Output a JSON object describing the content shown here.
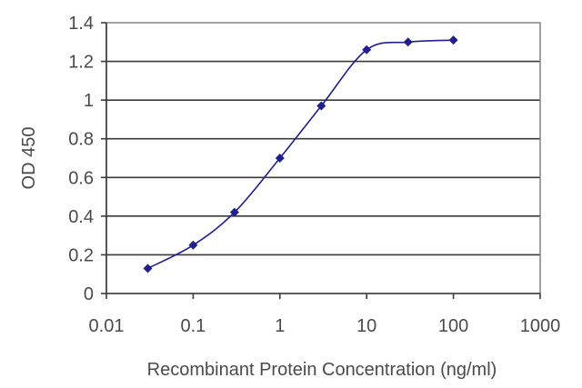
{
  "chart_data": {
    "type": "scatter",
    "xscale": "log",
    "ylabel": "OD 450",
    "xlabel": "Recombinant Protein Concentration (ng/ml)",
    "xlim": [
      0.01,
      1000
    ],
    "ylim": [
      0,
      1.4
    ],
    "xticks": [
      "0.01",
      "0.1",
      "1",
      "10",
      "100",
      "1000"
    ],
    "yticks": [
      "0",
      "0.2",
      "0.4",
      "0.6",
      "0.8",
      "1",
      "1.2",
      "1.4"
    ],
    "grid": "horizontal",
    "line": "smooth fitted curve through points",
    "series": [
      {
        "x": [
          0.03,
          0.1,
          0.3,
          1,
          3,
          10,
          30,
          100
        ],
        "y": [
          0.13,
          0.25,
          0.42,
          0.7,
          0.97,
          1.26,
          1.3,
          1.31
        ]
      }
    ],
    "colors": {
      "series": "#1f1f8f",
      "grid": "#3a3a3a",
      "frame": "#7a7a7a"
    }
  }
}
